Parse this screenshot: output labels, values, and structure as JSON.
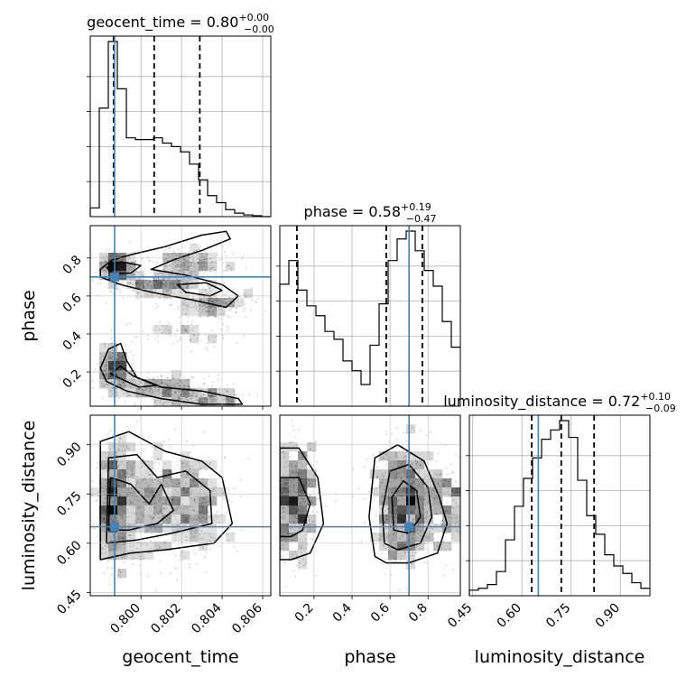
{
  "chart_data": {
    "type": "corner",
    "parameters": [
      "geocent_time",
      "phase",
      "luminosity_distance"
    ],
    "axis_labels": {
      "geocent_time": "geocent_time",
      "phase": "phase",
      "luminosity_distance": "luminosity_distance"
    },
    "ranges": {
      "geocent_time": [
        0.7975,
        0.8064
      ],
      "phase": [
        0.02,
        0.97
      ],
      "luminosity_distance": [
        0.44,
        0.99
      ]
    },
    "ticks": {
      "geocent_time": {
        "values": [
          0.8,
          0.802,
          0.804,
          0.806
        ],
        "labels": [
          "0.800",
          "0.802",
          "0.804",
          "0.806"
        ]
      },
      "phase": {
        "values": [
          0.2,
          0.4,
          0.6,
          0.8
        ],
        "labels": [
          "0.2",
          "0.4",
          "0.6",
          "0.8"
        ]
      },
      "luminosity_distance": {
        "values": [
          0.45,
          0.6,
          0.75,
          0.9
        ],
        "labels": [
          "0.45",
          "0.60",
          "0.75",
          "0.90"
        ]
      }
    },
    "truths": {
      "geocent_time": 0.7987,
      "phase": 0.7,
      "luminosity_distance": 0.65
    },
    "titles": [
      {
        "param": "geocent_time",
        "prefix": "geocent_time = ",
        "median": "0.80",
        "plus": "+0.00",
        "minus": "−0.00"
      },
      {
        "param": "phase",
        "prefix": "phase = ",
        "median": "0.58",
        "plus": "+0.19",
        "minus": "−0.47"
      },
      {
        "param": "luminosity_distance",
        "prefix": "luminosity_distance = ",
        "median": "0.72",
        "plus": "+0.10",
        "minus": "−0.09"
      }
    ],
    "quantiles": {
      "geocent_time": [
        0.79865,
        0.80065,
        0.8029
      ],
      "phase": [
        0.11,
        0.58,
        0.77
      ],
      "luminosity_distance": [
        0.63,
        0.72,
        0.82
      ]
    },
    "histograms": {
      "geocent_time": {
        "values": [
          0.05,
          0.62,
          1.0,
          0.73,
          0.45,
          0.44,
          0.44,
          0.45,
          0.42,
          0.4,
          0.37,
          0.3,
          0.21,
          0.12,
          0.08,
          0.04,
          0.02,
          0.01,
          0.005,
          0.0
        ]
      },
      "phase": {
        "values": [
          0.62,
          0.74,
          0.59,
          0.51,
          0.46,
          0.38,
          0.34,
          0.23,
          0.18,
          0.11,
          0.31,
          0.52,
          0.74,
          0.85,
          0.89,
          0.79,
          0.69,
          0.61,
          0.43,
          0.3
        ]
      },
      "luminosity_distance": {
        "values": [
          0.03,
          0.04,
          0.06,
          0.13,
          0.3,
          0.48,
          0.63,
          0.74,
          0.84,
          0.89,
          0.94,
          0.85,
          0.62,
          0.43,
          0.33,
          0.22,
          0.16,
          0.12,
          0.07,
          0.04
        ]
      }
    },
    "grid": true,
    "legend": "none"
  }
}
